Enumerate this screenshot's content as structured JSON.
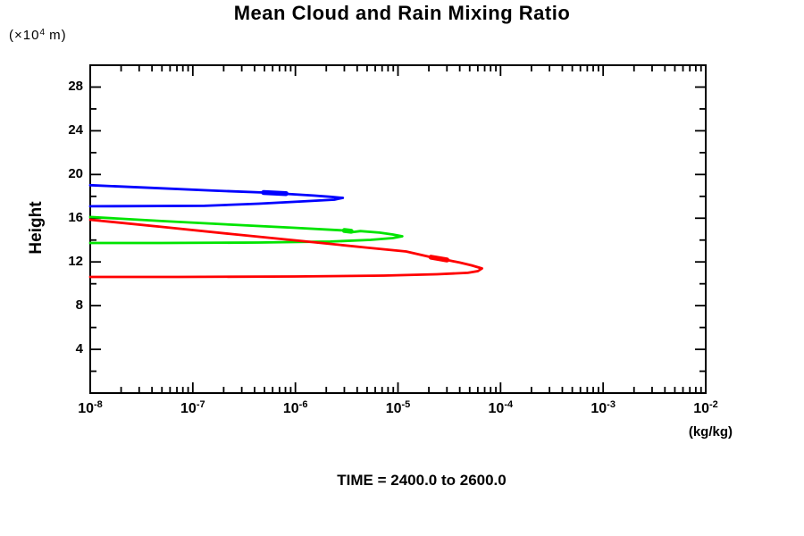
{
  "header": {
    "title": "Mean Cloud and Rain Mixing Ratio"
  },
  "y_axis": {
    "unit_prefix": "(×10",
    "unit_sup": "4",
    "unit_suffix": " m)",
    "label": "Height",
    "major_tick_values": [
      28,
      24,
      20,
      16,
      12,
      8,
      4
    ],
    "minor_tick_values": [
      26,
      22,
      18,
      14,
      10,
      6,
      2
    ],
    "min": 0,
    "max": 30
  },
  "x_axis": {
    "tick_base": "10",
    "exponents": [
      -8,
      -7,
      -6,
      -5,
      -4,
      -3,
      -2
    ],
    "scale": "log",
    "unit_label": "(kg/kg)"
  },
  "footer": {
    "time_label": "TIME = 2400.0 to 2600.0"
  },
  "colors": {
    "frame": "#000000",
    "blue": "#0000ff",
    "green": "#00e400",
    "red": "#ff0000"
  },
  "chart_data": {
    "type": "line",
    "title": "Mean Cloud and Rain Mixing Ratio",
    "xlabel": "(kg/kg)",
    "ylabel": "Height (×10^4 m)",
    "x_scale": "log",
    "xlim": [
      1e-08,
      0.01
    ],
    "ylim": [
      0,
      30
    ],
    "grid": false,
    "legend": "none",
    "annotation": "TIME = 2400.0 to 2600.0",
    "series": [
      {
        "name": "blue-profile",
        "color_key": "blue",
        "points": [
          [
            1e-08,
            19.02
          ],
          [
            4e-08,
            18.78
          ],
          [
            1.6e-07,
            18.52
          ],
          [
            4.9e-07,
            18.35
          ],
          [
            8.1e-07,
            18.23
          ],
          [
            1.5e-06,
            18.07
          ],
          [
            2.2e-06,
            17.96
          ],
          [
            2.9e-06,
            17.86
          ],
          [
            2.4e-06,
            17.7
          ],
          [
            1.2e-06,
            17.54
          ],
          [
            4.4e-07,
            17.33
          ],
          [
            1.3e-07,
            17.13
          ],
          [
            1e-08,
            17.09
          ]
        ],
        "thick_segment": [
          [
            4.9e-07,
            18.35
          ],
          [
            8.1e-07,
            18.25
          ]
        ]
      },
      {
        "name": "green-profile",
        "color_key": "green",
        "points": [
          [
            1e-08,
            16.11
          ],
          [
            4.9e-08,
            15.74
          ],
          [
            2.4e-07,
            15.41
          ],
          [
            9.8e-07,
            15.12
          ],
          [
            3e-06,
            14.88
          ],
          [
            3.5e-06,
            14.71
          ],
          [
            4.3e-06,
            14.82
          ],
          [
            6.6e-06,
            14.68
          ],
          [
            8.9e-06,
            14.51
          ],
          [
            1.1e-05,
            14.35
          ],
          [
            8.9e-06,
            14.18
          ],
          [
            5.4e-06,
            14.02
          ],
          [
            2.2e-06,
            13.86
          ],
          [
            4.4e-07,
            13.77
          ],
          [
            4.9e-08,
            13.73
          ],
          [
            1e-08,
            13.73
          ]
        ],
        "thick_segment": [
          [
            3e-06,
            14.88
          ],
          [
            3.5e-06,
            14.8
          ]
        ]
      },
      {
        "name": "red-profile",
        "color_key": "red",
        "points": [
          [
            1e-08,
            15.86
          ],
          [
            4.9e-08,
            15.21
          ],
          [
            2.4e-07,
            14.55
          ],
          [
            1.2e-06,
            13.9
          ],
          [
            4.9e-06,
            13.32
          ],
          [
            1.2e-05,
            12.96
          ],
          [
            2.1e-05,
            12.43
          ],
          [
            3e-05,
            12.18
          ],
          [
            4e-05,
            11.94
          ],
          [
            5.2e-05,
            11.69
          ],
          [
            6.6e-05,
            11.4
          ],
          [
            6e-05,
            11.16
          ],
          [
            4.8e-05,
            11.0
          ],
          [
            2.4e-05,
            10.87
          ],
          [
            7.3e-06,
            10.75
          ],
          [
            9.8e-07,
            10.67
          ],
          [
            7.2e-08,
            10.63
          ],
          [
            1e-08,
            10.63
          ]
        ],
        "thick_segment": [
          [
            2.1e-05,
            12.43
          ],
          [
            3e-05,
            12.18
          ]
        ]
      }
    ]
  }
}
